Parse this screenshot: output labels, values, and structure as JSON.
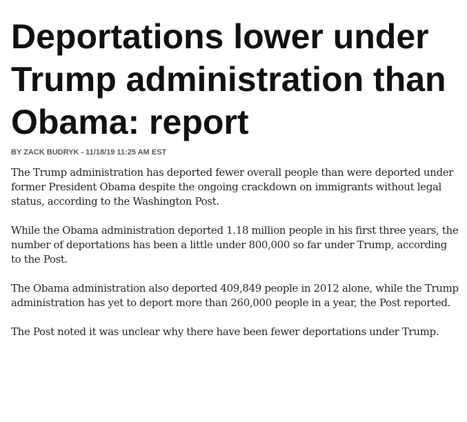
{
  "article": {
    "headline": "Deportations lower under Trump administration than Obama: report",
    "byline": "BY ZACK BUDRYK - 11/18/19 11:25 AM EST",
    "paragraphs": [
      "The Trump administration has deported fewer overall people than were deported under former President Obama despite the ongoing crackdown on immigrants without legal status, according to the Washington Post.",
      "While the Obama administration deported 1.18 million people in his first three years, the number of deportations has been a little under 800,000 so far under Trump, according to the Post.",
      "The Obama administration also deported 409,849 people in 2012 alone, while the Trump administration has yet to deport more than 260,000 people in a year, the Post reported.",
      "The Post noted it was unclear why there have been fewer deportations under Trump."
    ]
  }
}
